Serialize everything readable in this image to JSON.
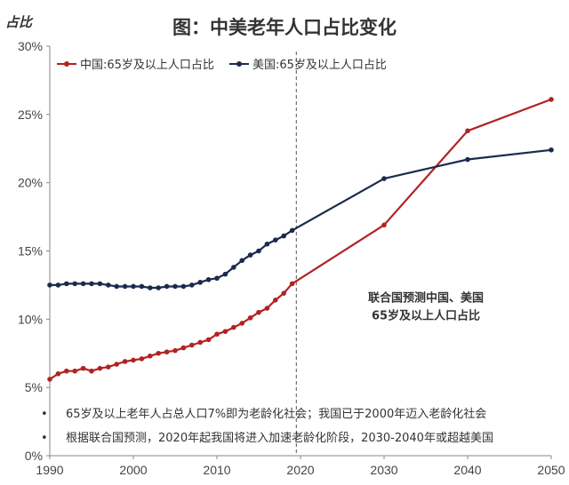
{
  "chart_data": {
    "type": "line",
    "title": "图：中美老年人口占比变化",
    "ylabel": "占比",
    "xlim": [
      1990,
      2050
    ],
    "ylim": [
      0,
      30
    ],
    "yticks": [
      "0%",
      "5%",
      "10%",
      "15%",
      "20%",
      "25%",
      "30%"
    ],
    "xticks": [
      "1990",
      "2000",
      "2010",
      "2020",
      "2030",
      "2040",
      "2050"
    ],
    "grid": false,
    "legend": "top-left",
    "series": [
      {
        "name": "中国:65岁及以上人口占比",
        "color": "#b22222",
        "x": [
          1990,
          1991,
          1992,
          1993,
          1994,
          1995,
          1996,
          1997,
          1998,
          1999,
          2000,
          2001,
          2002,
          2003,
          2004,
          2005,
          2006,
          2007,
          2008,
          2009,
          2010,
          2011,
          2012,
          2013,
          2014,
          2015,
          2016,
          2017,
          2018,
          2019,
          2030,
          2040,
          2050
        ],
        "y": [
          5.6,
          6.0,
          6.2,
          6.2,
          6.4,
          6.2,
          6.4,
          6.5,
          6.7,
          6.9,
          7.0,
          7.1,
          7.3,
          7.5,
          7.6,
          7.7,
          7.9,
          8.1,
          8.3,
          8.5,
          8.9,
          9.1,
          9.4,
          9.7,
          10.1,
          10.5,
          10.8,
          11.4,
          11.9,
          12.6,
          16.9,
          23.8,
          26.1
        ]
      },
      {
        "name": "美国:65岁及以上人口占比",
        "color": "#1a2b4c",
        "x": [
          1990,
          1991,
          1992,
          1993,
          1994,
          1995,
          1996,
          1997,
          1998,
          1999,
          2000,
          2001,
          2002,
          2003,
          2004,
          2005,
          2006,
          2007,
          2008,
          2009,
          2010,
          2011,
          2012,
          2013,
          2014,
          2015,
          2016,
          2017,
          2018,
          2019,
          2030,
          2040,
          2050
        ],
        "y": [
          12.5,
          12.5,
          12.6,
          12.6,
          12.6,
          12.6,
          12.6,
          12.5,
          12.4,
          12.4,
          12.4,
          12.4,
          12.3,
          12.3,
          12.4,
          12.4,
          12.4,
          12.5,
          12.7,
          12.9,
          13.0,
          13.3,
          13.8,
          14.3,
          14.7,
          15.0,
          15.5,
          15.8,
          16.1,
          16.5,
          20.3,
          21.7,
          22.4
        ]
      }
    ],
    "reference_line": {
      "x": 2019.5,
      "style": "dashed"
    },
    "annotation": {
      "lines": [
        "联合国预测中国、美国",
        "65岁及以上人口占比"
      ],
      "x": 2035,
      "y": 11.3
    },
    "notes": [
      "65岁及以上老年人占总人口7%即为老龄化社会；我国已于2000年迈入老龄化社会",
      "根据联合国预测，2020年起我国将进入加速老龄化阶段，2030-2040年或超越美国"
    ],
    "bullet": "•"
  }
}
